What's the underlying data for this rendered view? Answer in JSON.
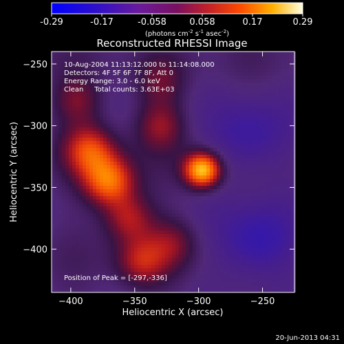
{
  "chart_data": {
    "type": "heatmap",
    "title": "Reconstructed RHESSI Image",
    "xlabel": "Heliocentric X (arcsec)",
    "ylabel": "Heliocentric Y (arcsec)",
    "xlim": [
      -415,
      -225
    ],
    "ylim": [
      -435,
      -240
    ],
    "xticks": [
      -400,
      -350,
      -300,
      -250
    ],
    "yticks": [
      -400,
      -350,
      -300,
      -250
    ],
    "colorbar": {
      "range": [
        -0.29,
        0.29
      ],
      "ticks": [
        "-0.29",
        "-0.17",
        "-0.058",
        "0.058",
        "0.17",
        "0.29"
      ],
      "label_main": "(photons cm",
      "label_exp1": "-2",
      "label_mid1": " s",
      "label_exp2": "-1",
      "label_mid2": " asec",
      "label_exp3": "-2",
      "label_end": ")"
    },
    "annotations": {
      "time": "10-Aug-2004 11:13:12.000 to 11:14:08.000",
      "detectors": "Detectors: 4F 5F 6F 7F 8F, Att 0",
      "energy": "Energy Range: 3.0 - 6.0 keV",
      "clean": "Clean     Total counts: 3.63E+03",
      "peak": "Position of Peak = [-297,-336]"
    },
    "sources": [
      {
        "x": -297,
        "y": -336,
        "amplitude": 0.29
      },
      {
        "x": -370,
        "y": -345,
        "amplitude": 0.21
      },
      {
        "x": -385,
        "y": -320,
        "amplitude": 0.16
      },
      {
        "x": -355,
        "y": -375,
        "amplitude": 0.13
      },
      {
        "x": -345,
        "y": -410,
        "amplitude": 0.12
      },
      {
        "x": -330,
        "y": -300,
        "amplitude": 0.1
      },
      {
        "x": -395,
        "y": -280,
        "amplitude": 0.09
      },
      {
        "x": -320,
        "y": -395,
        "amplitude": 0.08
      },
      {
        "x": -260,
        "y": -310,
        "amplitude": -0.09
      },
      {
        "x": -255,
        "y": -395,
        "amplitude": -0.11
      },
      {
        "x": -330,
        "y": -265,
        "amplitude": 0.07
      }
    ]
  },
  "footer": {
    "timestamp": "20-Jun-2013 04:31"
  }
}
